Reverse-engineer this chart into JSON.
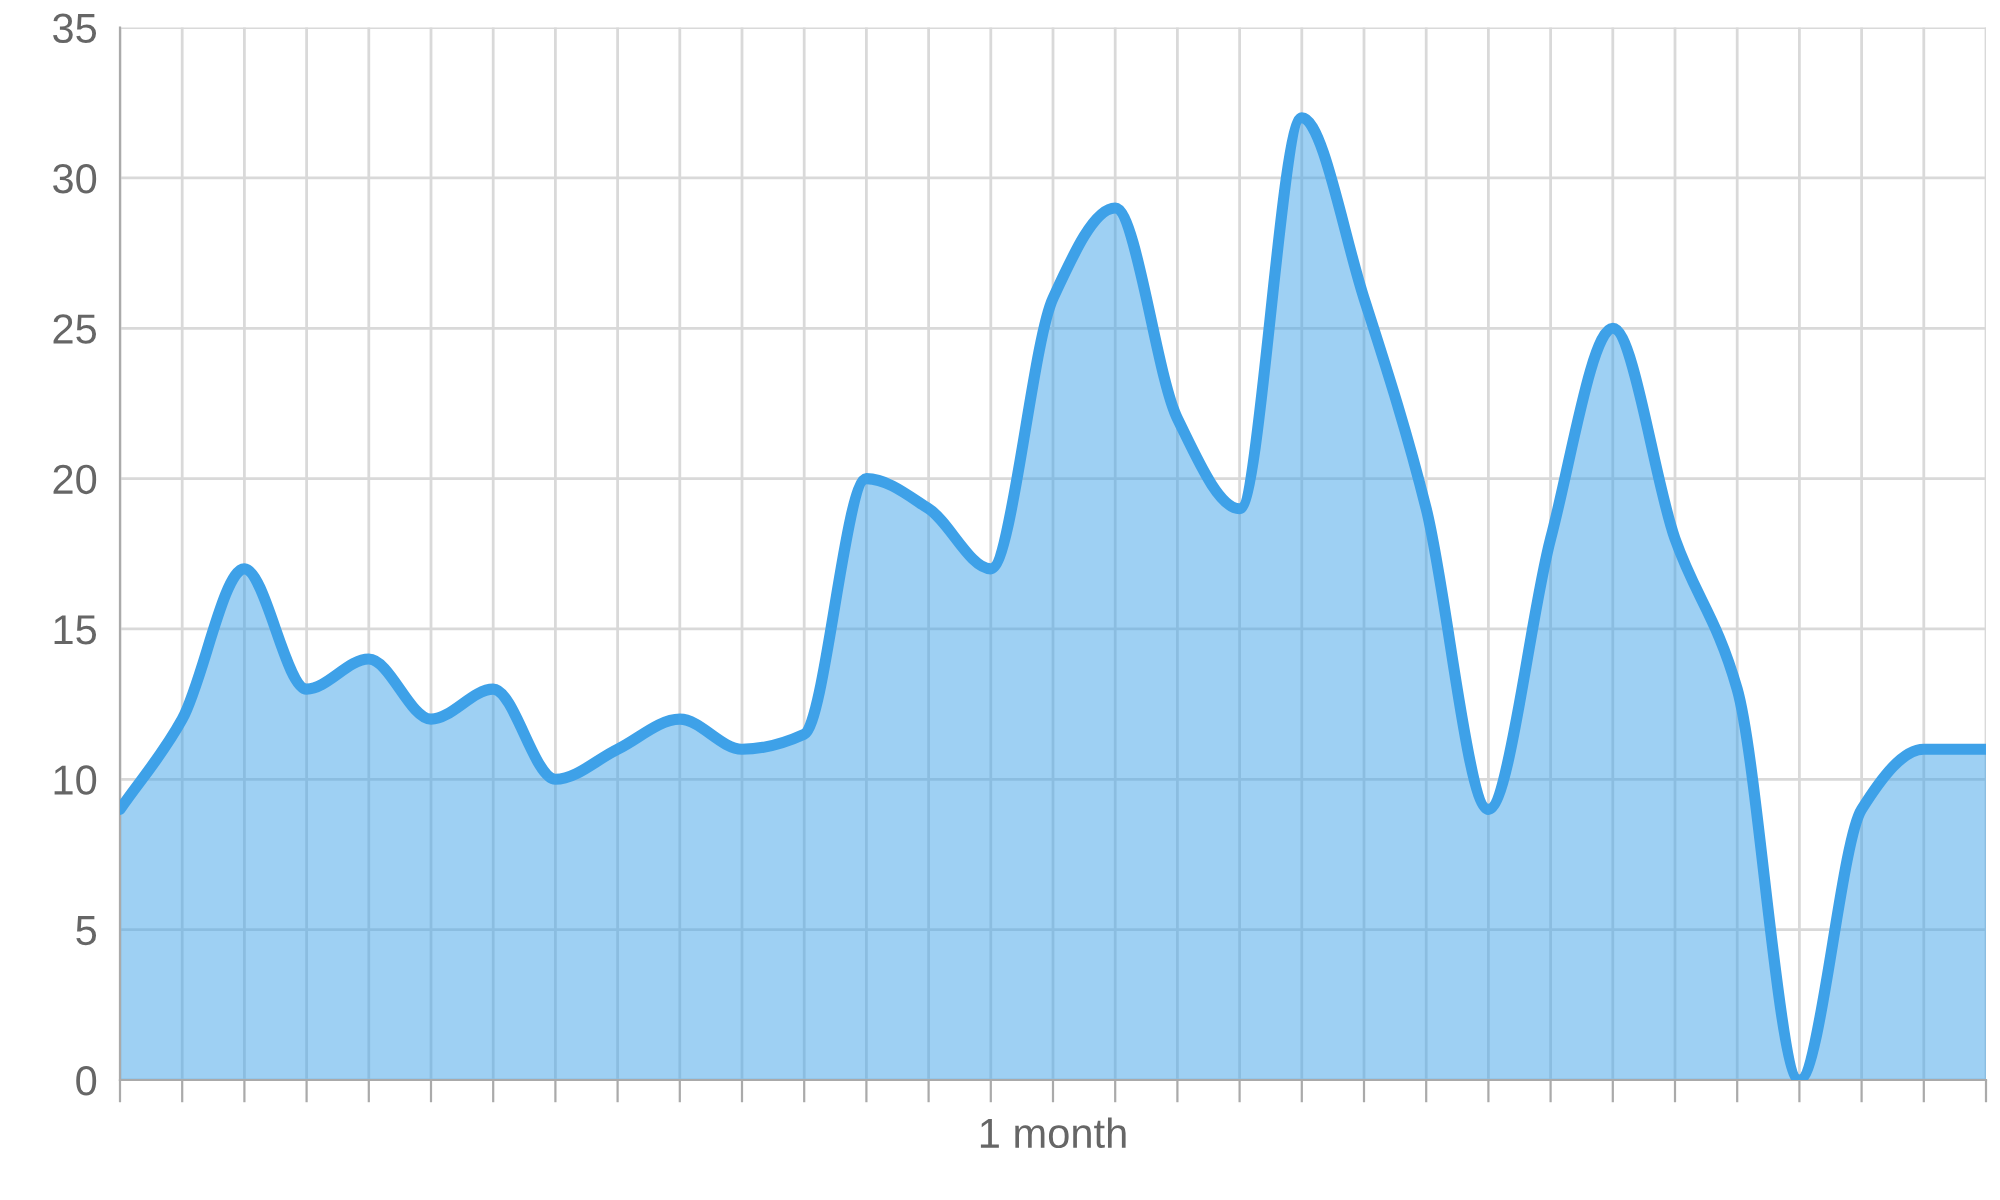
{
  "chart_data": {
    "type": "area",
    "xlabel": "1 month",
    "categories": [
      null,
      null,
      null,
      null,
      null,
      null,
      null,
      null,
      null,
      null,
      null,
      null,
      null,
      null,
      null,
      null,
      null,
      null,
      null,
      null,
      null,
      null,
      null,
      null,
      null,
      null,
      null,
      null,
      null,
      null,
      null
    ],
    "series": [
      {
        "color": "#3ea1e8",
        "values": [
          9,
          12,
          17,
          13,
          14,
          12,
          13,
          10,
          11,
          12,
          11,
          11.5,
          20,
          19,
          17,
          26,
          29,
          22,
          19,
          32,
          26,
          19,
          9,
          18,
          25,
          18,
          13,
          0,
          9,
          11,
          11
        ]
      }
    ],
    "ylim": [
      0,
      35
    ],
    "yticks": [
      0,
      5,
      10,
      15,
      20,
      25,
      30,
      35
    ],
    "grid": true,
    "legend": false,
    "marker": "none",
    "line_style": "solid"
  }
}
